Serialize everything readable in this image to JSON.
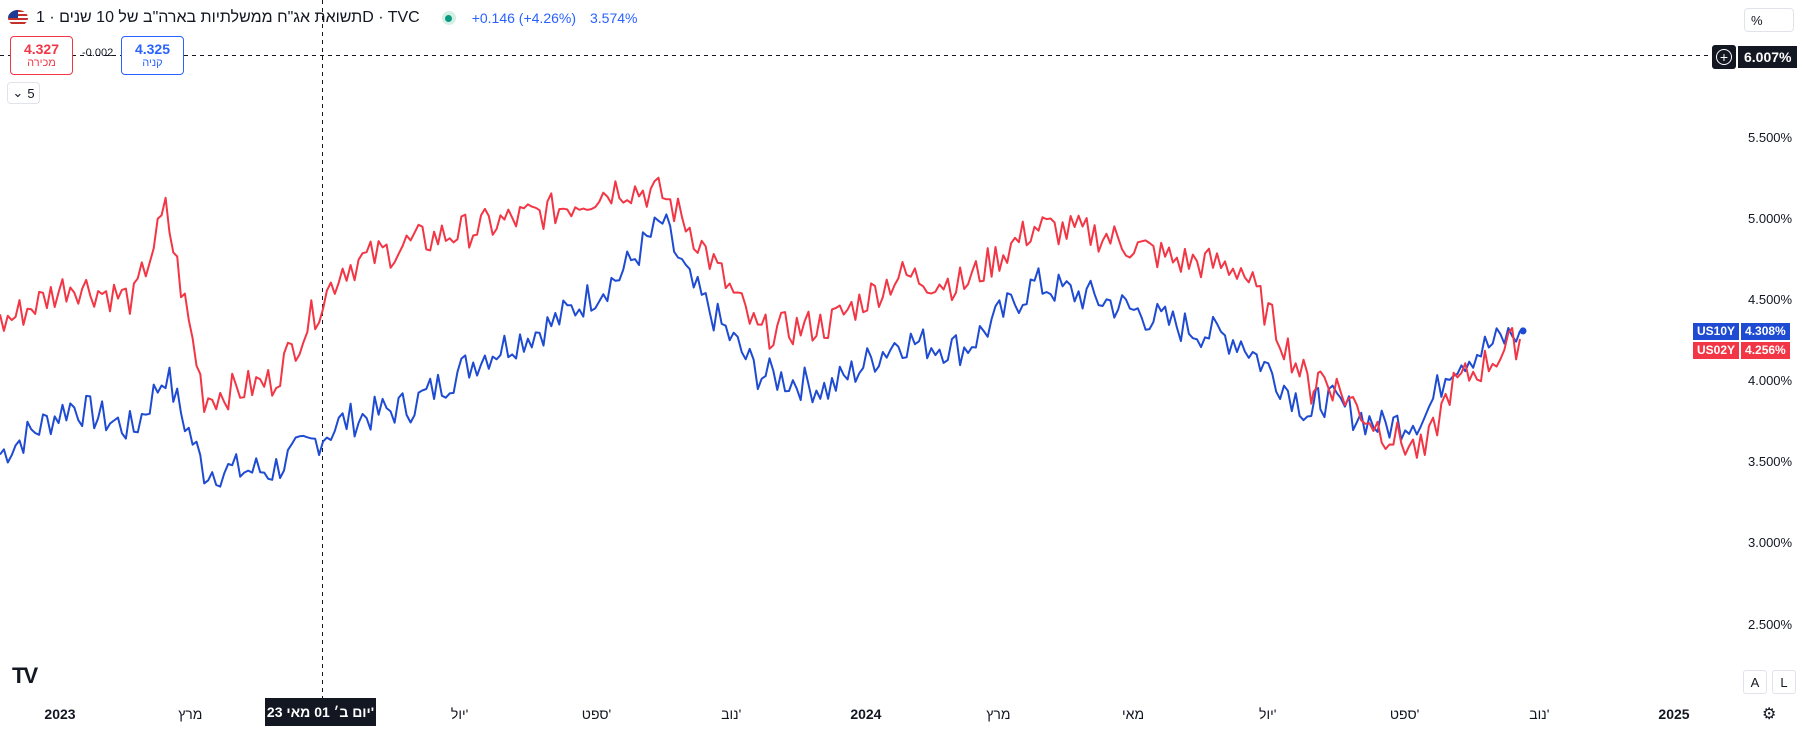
{
  "header": {
    "title": "תשואת אג\"ח ממשלתיות בארה\"ב של 10 שנים · 1D · TVC",
    "change": "+0.146 (+4.26%)",
    "last_value": "3.574%"
  },
  "trade": {
    "sell_price": "4.327",
    "sell_label": "מכירה",
    "buy_price": "4.325",
    "buy_label": "קניה",
    "spread": "-0.002"
  },
  "collapse_count": "5",
  "scale_mode": "%",
  "crosshair_price": "6.007%",
  "date_badge": "יום ב׳ 01 מאי 23'",
  "y_ticks": [
    "5.500%",
    "5.000%",
    "4.500%",
    "4.000%",
    "3.500%",
    "3.000%",
    "2.500%"
  ],
  "x_ticks": [
    {
      "label": "2023",
      "bold": true
    },
    {
      "label": "מרץ",
      "bold": false
    },
    {
      "label": "יול'",
      "bold": false
    },
    {
      "label": "ספט'",
      "bold": false
    },
    {
      "label": "נוב'",
      "bold": false
    },
    {
      "label": "2024",
      "bold": true
    },
    {
      "label": "מרץ",
      "bold": false
    },
    {
      "label": "מאי",
      "bold": false
    },
    {
      "label": "יול'",
      "bold": false
    },
    {
      "label": "ספט'",
      "bold": false
    },
    {
      "label": "נוב'",
      "bold": false
    },
    {
      "label": "2025",
      "bold": true
    }
  ],
  "buttons": {
    "auto": "A",
    "log": "L"
  },
  "colors": {
    "us10y": "#1e4bd2",
    "us02y": "#f23645",
    "text": "#131722"
  },
  "chart_data": {
    "type": "line",
    "x_axis": "date (2023-01 to 2024-12)",
    "ylim": [
      2.0,
      6.3
    ],
    "x": [
      "2023-01",
      "2023-02",
      "2023-03",
      "2023-03-15",
      "2023-04",
      "2023-05",
      "2023-06",
      "2023-07",
      "2023-08",
      "2023-09",
      "2023-10",
      "2023-10-20",
      "2023-11",
      "2023-12",
      "2024-01",
      "2024-02",
      "2024-03",
      "2024-04",
      "2024-05",
      "2024-06",
      "2024-07",
      "2024-08",
      "2024-08-05",
      "2024-09",
      "2024-09-20",
      "2024-10",
      "2024-11"
    ],
    "series": [
      {
        "name": "US10Y",
        "last": "4.308%",
        "values": [
          3.55,
          3.85,
          3.7,
          4.05,
          3.45,
          3.45,
          3.75,
          3.85,
          4.15,
          4.35,
          4.65,
          4.98,
          4.6,
          4.05,
          3.95,
          4.25,
          4.2,
          4.6,
          4.5,
          4.35,
          4.25,
          3.8,
          3.9,
          3.72,
          3.78,
          4.1,
          4.31
        ]
      },
      {
        "name": "US02Y",
        "last": "4.256%",
        "values": [
          4.35,
          4.6,
          4.5,
          5.05,
          3.9,
          4.0,
          4.7,
          4.85,
          4.95,
          5.05,
          5.2,
          5.15,
          4.95,
          4.3,
          4.35,
          4.65,
          4.6,
          4.95,
          4.9,
          4.75,
          4.7,
          3.95,
          4.05,
          3.7,
          3.55,
          3.95,
          4.26
        ]
      }
    ]
  }
}
